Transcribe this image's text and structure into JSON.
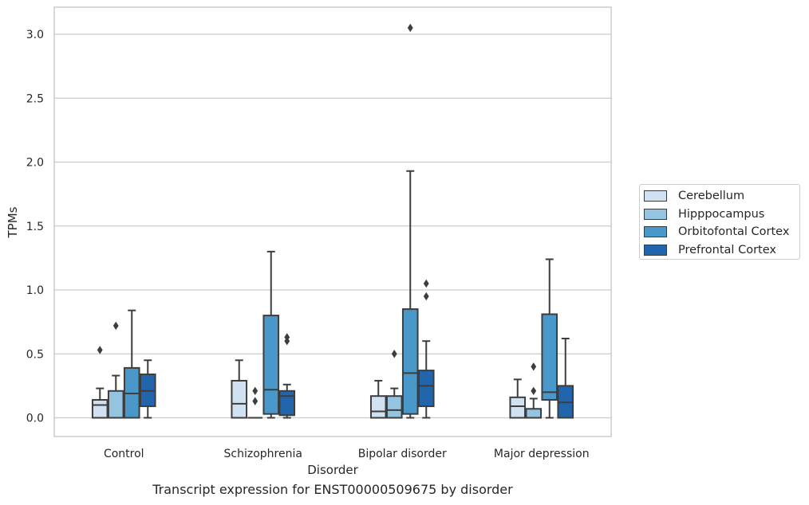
{
  "chart_data": {
    "type": "box",
    "title": "",
    "caption": "Transcript expression for ENST00000509675 by disorder",
    "xlabel": "Disorder",
    "ylabel": "TPMs",
    "categories": [
      "Control",
      "Schizophrenia",
      "Bipolar disorder",
      "Major depression"
    ],
    "ylim": [
      -0.15,
      3.2
    ],
    "yticks": [
      "0.0",
      "0.5",
      "1.0",
      "1.5",
      "2.0",
      "2.5",
      "3.0"
    ],
    "grid": true,
    "legend_position": "right",
    "series": [
      {
        "name": "Cerebellum",
        "color": "#d0e1f2",
        "boxes": [
          {
            "q1": 0.0,
            "median": 0.1,
            "q3": 0.14,
            "whisker_low": 0.0,
            "whisker_high": 0.23,
            "outliers": [
              0.53
            ]
          },
          {
            "q1": 0.0,
            "median": 0.11,
            "q3": 0.29,
            "whisker_low": 0.0,
            "whisker_high": 0.45,
            "outliers": []
          },
          {
            "q1": 0.0,
            "median": 0.05,
            "q3": 0.17,
            "whisker_low": 0.0,
            "whisker_high": 0.29,
            "outliers": []
          },
          {
            "q1": 0.0,
            "median": 0.09,
            "q3": 0.16,
            "whisker_low": 0.0,
            "whisker_high": 0.3,
            "outliers": []
          }
        ]
      },
      {
        "name": "Hipppocampus",
        "color": "#94c4df",
        "boxes": [
          {
            "q1": 0.0,
            "median": 0.0,
            "q3": 0.21,
            "whisker_low": 0.0,
            "whisker_high": 0.33,
            "outliers": [
              0.72
            ]
          },
          {
            "q1": 0.0,
            "median": 0.0,
            "q3": 0.0,
            "whisker_low": 0.0,
            "whisker_high": 0.0,
            "outliers": [
              0.13,
              0.21
            ]
          },
          {
            "q1": 0.0,
            "median": 0.06,
            "q3": 0.17,
            "whisker_low": 0.0,
            "whisker_high": 0.23,
            "outliers": [
              0.5
            ]
          },
          {
            "q1": 0.0,
            "median": 0.0,
            "q3": 0.07,
            "whisker_low": 0.0,
            "whisker_high": 0.15,
            "outliers": [
              0.21,
              0.4
            ]
          }
        ]
      },
      {
        "name": "Orbitofontal Cortex",
        "color": "#4a98c9",
        "boxes": [
          {
            "q1": 0.0,
            "median": 0.19,
            "q3": 0.39,
            "whisker_low": 0.0,
            "whisker_high": 0.84,
            "outliers": []
          },
          {
            "q1": 0.03,
            "median": 0.22,
            "q3": 0.8,
            "whisker_low": 0.0,
            "whisker_high": 1.3,
            "outliers": []
          },
          {
            "q1": 0.03,
            "median": 0.35,
            "q3": 0.85,
            "whisker_low": 0.0,
            "whisker_high": 1.93,
            "outliers": [
              3.05
            ]
          },
          {
            "q1": 0.14,
            "median": 0.2,
            "q3": 0.81,
            "whisker_low": 0.0,
            "whisker_high": 1.24,
            "outliers": []
          }
        ]
      },
      {
        "name": "Prefrontal Cortex",
        "color": "#2166ac",
        "boxes": [
          {
            "q1": 0.09,
            "median": 0.21,
            "q3": 0.34,
            "whisker_low": 0.0,
            "whisker_high": 0.45,
            "outliers": []
          },
          {
            "q1": 0.02,
            "median": 0.17,
            "q3": 0.21,
            "whisker_low": 0.0,
            "whisker_high": 0.26,
            "outliers": [
              0.6,
              0.63
            ]
          },
          {
            "q1": 0.09,
            "median": 0.25,
            "q3": 0.37,
            "whisker_low": 0.0,
            "whisker_high": 0.6,
            "outliers": [
              0.95,
              1.05
            ]
          },
          {
            "q1": 0.0,
            "median": 0.12,
            "q3": 0.25,
            "whisker_low": 0.0,
            "whisker_high": 0.62,
            "outliers": []
          }
        ]
      }
    ]
  }
}
